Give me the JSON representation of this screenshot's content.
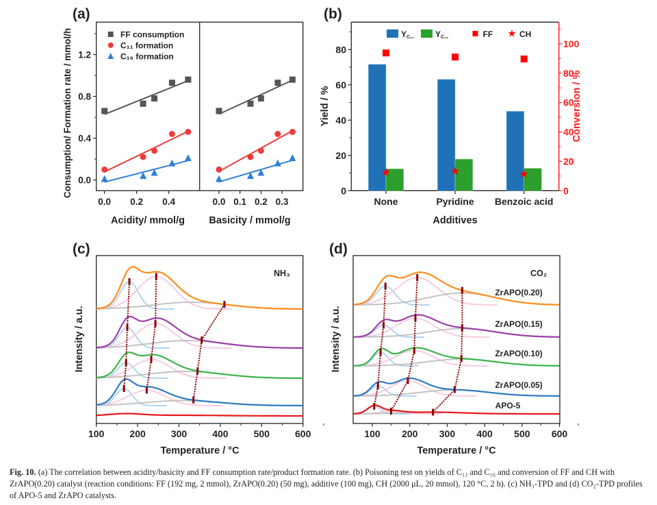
{
  "caption": {
    "label": "Fig. 10.",
    "text": "(a) The correlation between acidity/basicity and FF consumption rate/product formation rate. (b) Poisoning test on yields of C₁₁ and C₁₆ and conversion of FF and CH with ZrAPO(0.20) catalyst (reaction conditions: FF (192 mg, 2 mmol), ZrAPO(0.20) (50 mg), additive (100 mg), CH (2000 μL, 20 mmol), 120 °C, 2 h). (c) NH₃-TPD and (d) CO₂-TPD profiles of APO-5 and ZrAPO catalysts."
  },
  "chart_data": [
    {
      "panel": "(a)",
      "type": "scatter",
      "ylabel": "Consumption/ Formation rate / mmol/h",
      "ylim": [
        -0.1,
        1.5
      ],
      "yticks": [
        "0.0",
        "0.4",
        "0.8",
        "1.2"
      ],
      "ytick_values": [
        0,
        0.4,
        0.8,
        1.2
      ],
      "fit": "linear",
      "subplots": [
        {
          "xlabel": "Acidity/ mmol/g",
          "xlim": [
            -0.05,
            0.59
          ],
          "xticks": [
            "0.0",
            "0.2",
            "0.4"
          ],
          "xtick_values": [
            0,
            0.2,
            0.4
          ],
          "x": [
            0.0,
            0.24,
            0.31,
            0.42,
            0.52
          ]
        },
        {
          "xlabel": "Basicity / mmol/g",
          "xlim": [
            -0.09,
            0.4
          ],
          "xticks": [
            "0.0",
            "0.1",
            "0.2",
            "0.3"
          ],
          "xtick_values": [
            0,
            0.1,
            0.2,
            0.3
          ],
          "x": [
            0.0,
            0.15,
            0.2,
            0.28,
            0.35
          ]
        }
      ],
      "series": [
        {
          "name": "FF consumption",
          "marker": "square",
          "color": "#555555",
          "values": [
            0.66,
            0.73,
            0.78,
            0.93,
            0.96
          ]
        },
        {
          "name": "C₁₁ formation",
          "marker": "circle",
          "color": "#ee3b3b",
          "values": [
            0.1,
            0.22,
            0.28,
            0.44,
            0.46
          ]
        },
        {
          "name": "C₁₆ formation",
          "marker": "triangle",
          "color": "#2f7fd8",
          "values": [
            0.01,
            0.04,
            0.07,
            0.16,
            0.21
          ]
        }
      ],
      "legend": "top-left"
    },
    {
      "panel": "(b)",
      "type": "bar",
      "xlabel": "Additives",
      "ylabel": "Yield / %",
      "y2label": "Conversion / %",
      "categories": [
        "None",
        "Pyridine",
        "Benzoic acid"
      ],
      "ylim": [
        0,
        95
      ],
      "yticks": [
        "0",
        "20",
        "40",
        "60",
        "80"
      ],
      "ytick_values": [
        0,
        20,
        40,
        60,
        80
      ],
      "y2lim": [
        0,
        115
      ],
      "y2ticks": [
        "0",
        "20",
        "40",
        "60",
        "80",
        "100"
      ],
      "y2tick_values": [
        0,
        20,
        40,
        60,
        80,
        100
      ],
      "bars": [
        {
          "name": "Y",
          "sub": "C₁₁",
          "color": "#1f72b8",
          "values": [
            71.6,
            63.1,
            45.0
          ]
        },
        {
          "name": "Y",
          "sub": "C₁₆",
          "color": "#2ca02c",
          "values": [
            12.4,
            17.9,
            12.7
          ]
        }
      ],
      "points": [
        {
          "name": "FF",
          "marker": "square",
          "color": "#ff0000",
          "axis": "right",
          "values": [
            93.8,
            91.0,
            89.7
          ]
        },
        {
          "name": "CH",
          "marker": "star",
          "color": "#ff0000",
          "axis": "right",
          "values": [
            12.5,
            13.3,
            11.3
          ]
        }
      ],
      "legend": "top"
    },
    {
      "panel": "(c)",
      "type": "line",
      "annotation": "NH₃",
      "xlabel": "Temperature / °C",
      "ylabel": "Intensity / a.u.",
      "xlim": [
        100,
        600
      ],
      "xticks": [
        "100",
        "200",
        "300",
        "400",
        "500",
        "600"
      ],
      "xtick_values": [
        100,
        200,
        300,
        400,
        500,
        600
      ],
      "series": [
        {
          "color": "#ff8c1a",
          "peaks": [
            [
              180,
              0.8,
              22
            ],
            [
              245,
              0.95,
              45
            ],
            [
              330,
              0.2,
              90
            ]
          ],
          "markers": [
            180,
            245,
            410
          ]
        },
        {
          "color": "#9b3fa8",
          "peaks": [
            [
              175,
              0.6,
              20
            ],
            [
              243,
              0.72,
              45
            ],
            [
              320,
              0.22,
              90
            ]
          ],
          "markers": [
            175,
            243,
            355
          ]
        },
        {
          "color": "#3cb54a",
          "peaks": [
            [
              172,
              0.45,
              20
            ],
            [
              233,
              0.55,
              45
            ],
            [
              315,
              0.2,
              90
            ]
          ],
          "markers": [
            172,
            233,
            345
          ]
        },
        {
          "color": "#2f7bc0",
          "peaks": [
            [
              167,
              0.5,
              20
            ],
            [
              222,
              0.45,
              45
            ],
            [
              310,
              0.15,
              90
            ]
          ],
          "markers": [
            167,
            222,
            335
          ]
        },
        {
          "color": "#e8181b",
          "peaks": [
            [
              170,
              0.06,
              40
            ],
            [
              300,
              0.02,
              100
            ]
          ],
          "markers": []
        }
      ]
    },
    {
      "panel": "(d)",
      "type": "line",
      "annotation": "CO₂",
      "xlabel": "Temperature / °C",
      "ylabel": "Intensity / a.u.",
      "xlim": [
        50,
        600
      ],
      "xticks": [
        "100",
        "200",
        "300",
        "400",
        "500",
        "600"
      ],
      "xtick_values": [
        100,
        200,
        300,
        400,
        500,
        600
      ],
      "series": [
        {
          "name": "ZrAPO(0.20)",
          "color": "#ff8c1a",
          "peaks": [
            [
              135,
              0.55,
              25
            ],
            [
              220,
              0.8,
              55
            ],
            [
              340,
              0.35,
              90
            ]
          ],
          "markers": [
            135,
            220,
            340
          ]
        },
        {
          "name": "ZrAPO(0.15)",
          "color": "#9b3fa8",
          "peaks": [
            [
              130,
              0.35,
              22
            ],
            [
              215,
              0.55,
              50
            ],
            [
              340,
              0.25,
              90
            ]
          ],
          "markers": [
            130,
            215,
            340
          ]
        },
        {
          "name": "ZrAPO(0.10)",
          "color": "#3cb54a",
          "peaks": [
            [
              122,
              0.4,
              20
            ],
            [
              212,
              0.45,
              50
            ],
            [
              338,
              0.2,
              90
            ]
          ],
          "markers": [
            122,
            212,
            338
          ]
        },
        {
          "name": "ZrAPO(0.05)",
          "color": "#2f7bc0",
          "peaks": [
            [
              115,
              0.3,
              20
            ],
            [
              195,
              0.45,
              45
            ],
            [
              320,
              0.18,
              90
            ]
          ],
          "markers": [
            115,
            195,
            320
          ]
        },
        {
          "name": "APO-5",
          "color": "#e8181b",
          "peaks": [
            [
              105,
              0.22,
              18
            ],
            [
              150,
              0.08,
              30
            ],
            [
              262,
              0.05,
              80
            ]
          ],
          "markers": [
            105,
            150,
            262
          ]
        }
      ]
    }
  ]
}
